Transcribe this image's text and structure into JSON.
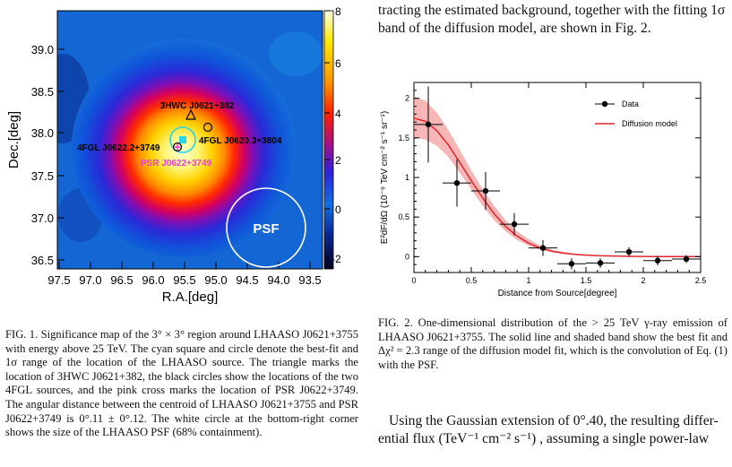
{
  "fig1": {
    "colorbar_ticks": [
      "8",
      "6",
      "4",
      "2",
      "0",
      "-2"
    ],
    "y_ticks": [
      "39.0",
      "38.5",
      "38.0",
      "37.5",
      "37.0",
      "36.5"
    ],
    "x_ticks": [
      "97.5",
      "97.0",
      "96.5",
      "96.0",
      "95.5",
      "95.0",
      "94.5",
      "94.0",
      "93.5"
    ],
    "xlabel": "R.A.[deg]",
    "ylabel": "Dec.[deg]",
    "labels": {
      "hawc": "3HWC J0621+382",
      "fgl1": "4FGL J0622.2+3749",
      "fgl2": "4FGL J0620.3+3804",
      "psr": "PSR J0622+3749",
      "psf": "PSF"
    },
    "caption": "FIG. 1.  Significance map of the 3° × 3° region around LHAASO J0621+3755 with energy above 25 TeV. The cyan square and circle denote the best-fit and 1σ range of the location of the LHAASO source. The triangle marks the location of 3HWC J0621+382, the black circles show the locations of the two 4FGL sources, and the pink cross marks the location of PSR J0622+3749. The angular distance between the centroid of LHAASO J0621+3755 and PSR J0622+3749 is 0°.11 ± 0°.12. The white circle at the bottom-right corner shows the size of the LHAASO PSF (68% containment)."
  },
  "chart_data": {
    "type": "scatter",
    "title": "",
    "xlabel": "Distance from Source[degree]",
    "ylabel": "E²dF/dΩ (10⁻⁹ TeV cm⁻² s⁻¹ sr⁻¹)",
    "xlim": [
      0,
      2.5
    ],
    "ylim": [
      -0.2,
      2.2
    ],
    "x_ticks": [
      "0",
      "0.5",
      "1",
      "1.5",
      "2",
      "2.5"
    ],
    "y_ticks": [
      "0",
      "0.5",
      "1",
      "1.5",
      "2"
    ],
    "legend": [
      "Data",
      "Diffusion model"
    ],
    "legend_position": "top-right",
    "series": [
      {
        "name": "Data",
        "x": [
          0.125,
          0.375,
          0.625,
          0.875,
          1.125,
          1.375,
          1.625,
          1.875,
          2.125,
          2.375
        ],
        "y": [
          1.67,
          0.93,
          0.83,
          0.41,
          0.11,
          -0.09,
          -0.08,
          0.06,
          -0.05,
          -0.03
        ],
        "yerr": [
          0.48,
          0.3,
          0.24,
          0.14,
          0.1,
          0.07,
          0.06,
          0.06,
          0.06,
          0.05
        ]
      },
      {
        "name": "Diffusion model",
        "x": [
          0,
          0.1,
          0.2,
          0.3,
          0.4,
          0.5,
          0.6,
          0.7,
          0.8,
          0.9,
          1.0,
          1.1,
          1.2,
          1.3,
          1.4,
          1.5,
          1.6,
          1.7,
          1.8,
          1.9,
          2.0,
          2.1,
          2.2,
          2.3,
          2.4,
          2.5
        ],
        "y": [
          1.75,
          1.71,
          1.59,
          1.41,
          1.19,
          0.96,
          0.74,
          0.54,
          0.38,
          0.26,
          0.17,
          0.11,
          0.07,
          0.045,
          0.03,
          0.02,
          0.013,
          0.009,
          0.006,
          0.004,
          0.003,
          0.002,
          0.002,
          0.001,
          0.001,
          0.001
        ],
        "band_low": [
          1.5,
          1.48,
          1.4,
          1.26,
          1.06,
          0.85,
          0.64,
          0.46,
          0.32,
          0.21,
          0.14,
          0.09,
          0.055,
          0.035,
          0.022,
          0.014,
          0.009,
          0.006,
          0.004,
          0.003,
          0.002,
          0.001,
          0.001,
          0.001,
          0.0,
          0.0
        ],
        "band_high": [
          2.02,
          1.97,
          1.82,
          1.6,
          1.35,
          1.09,
          0.85,
          0.64,
          0.46,
          0.32,
          0.22,
          0.14,
          0.09,
          0.06,
          0.04,
          0.027,
          0.018,
          0.012,
          0.008,
          0.006,
          0.004,
          0.003,
          0.002,
          0.002,
          0.001,
          0.001
        ]
      }
    ]
  },
  "fig2": {
    "caption": "FIG. 2.  One-dimensional distribution of the > 25 TeV γ-ray emission of LHAASO J0621+3755. The solid line and shaded band show the best fit and Δχ² = 2.3 range of the diffusion model fit, which is the convolution of Eq. (1) with the PSF."
  },
  "text": {
    "top_line1": "tracting the estimated background, together with the fitting 1σ",
    "top_line2": "band of the diffusion model, are shown in Fig. 2.",
    "bottom_line1": "Using the Gaussian extension of 0°.40, the resulting differ-",
    "bottom_line2": "ential flux (TeV⁻¹ cm⁻² s⁻¹) , assuming a single power-law"
  },
  "colors": {
    "model_line": "#e0262c",
    "model_band": "#f07a7a",
    "cyan": "#22d7e6",
    "pink": "#e43fd8"
  }
}
